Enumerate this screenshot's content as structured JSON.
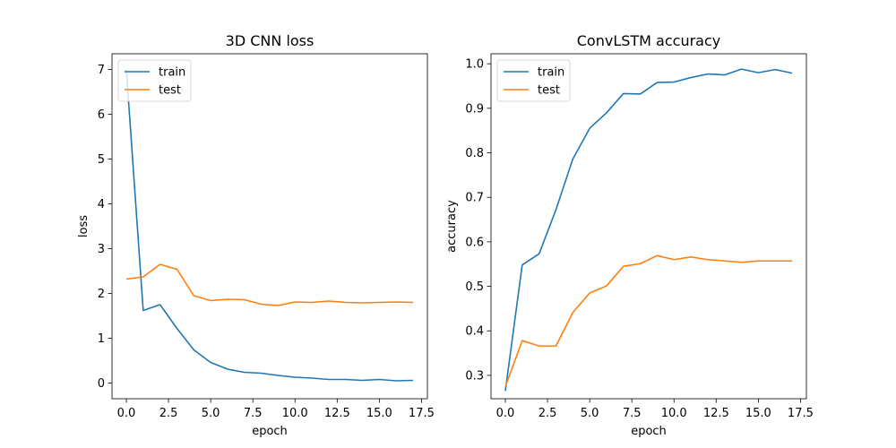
{
  "chart_data": [
    {
      "type": "line",
      "title": "3D CNN loss",
      "xlabel": "epoch",
      "ylabel": "loss",
      "xlim": [
        -0.85,
        17.85
      ],
      "ylim": [
        -0.35,
        7.35
      ],
      "xticks": [
        0.0,
        2.5,
        5.0,
        7.5,
        10.0,
        12.5,
        15.0,
        17.5
      ],
      "xtick_labels": [
        "0.0",
        "2.5",
        "5.0",
        "7.5",
        "10.0",
        "12.5",
        "15.0",
        "17.5"
      ],
      "yticks": [
        0,
        1,
        2,
        3,
        4,
        5,
        6,
        7
      ],
      "ytick_labels": [
        "0",
        "1",
        "2",
        "3",
        "4",
        "5",
        "6",
        "7"
      ],
      "legend_position": "upper-left",
      "grid": false,
      "x": [
        0,
        1,
        2,
        3,
        4,
        5,
        6,
        7,
        8,
        9,
        10,
        11,
        12,
        13,
        14,
        15,
        16,
        17
      ],
      "series": [
        {
          "name": "train",
          "color": "#1f77b4",
          "values": [
            7.0,
            1.62,
            1.75,
            1.22,
            0.74,
            0.46,
            0.31,
            0.24,
            0.22,
            0.17,
            0.13,
            0.11,
            0.08,
            0.08,
            0.06,
            0.08,
            0.05,
            0.06
          ]
        },
        {
          "name": "test",
          "color": "#ff7f0e",
          "values": [
            2.32,
            2.37,
            2.65,
            2.54,
            1.95,
            1.84,
            1.87,
            1.86,
            1.76,
            1.73,
            1.81,
            1.8,
            1.83,
            1.8,
            1.79,
            1.8,
            1.81,
            1.8
          ]
        }
      ]
    },
    {
      "type": "line",
      "title": "ConvLSTM accuracy",
      "xlabel": "epoch",
      "ylabel": "accuracy",
      "xlim": [
        -0.85,
        17.85
      ],
      "ylim": [
        0.2475,
        1.0225
      ],
      "xticks": [
        0.0,
        2.5,
        5.0,
        7.5,
        10.0,
        12.5,
        15.0,
        17.5
      ],
      "xtick_labels": [
        "0.0",
        "2.5",
        "5.0",
        "7.5",
        "10.0",
        "12.5",
        "15.0",
        "17.5"
      ],
      "yticks": [
        0.3,
        0.4,
        0.5,
        0.6,
        0.7,
        0.8,
        0.9,
        1.0
      ],
      "ytick_labels": [
        "0.3",
        "0.4",
        "0.5",
        "0.6",
        "0.7",
        "0.8",
        "0.9",
        "1.0"
      ],
      "legend_position": "upper-left",
      "grid": false,
      "x": [
        0,
        1,
        2,
        3,
        4,
        5,
        6,
        7,
        8,
        9,
        10,
        11,
        12,
        13,
        14,
        15,
        16,
        17
      ],
      "series": [
        {
          "name": "train",
          "color": "#1f77b4",
          "values": [
            0.265,
            0.548,
            0.573,
            0.672,
            0.786,
            0.855,
            0.89,
            0.933,
            0.932,
            0.958,
            0.959,
            0.969,
            0.977,
            0.975,
            0.988,
            0.98,
            0.987,
            0.979
          ]
        },
        {
          "name": "test",
          "color": "#ff7f0e",
          "values": [
            0.275,
            0.378,
            0.366,
            0.366,
            0.441,
            0.485,
            0.501,
            0.545,
            0.551,
            0.569,
            0.56,
            0.566,
            0.56,
            0.557,
            0.554,
            0.557,
            0.557,
            0.557
          ]
        }
      ]
    }
  ]
}
